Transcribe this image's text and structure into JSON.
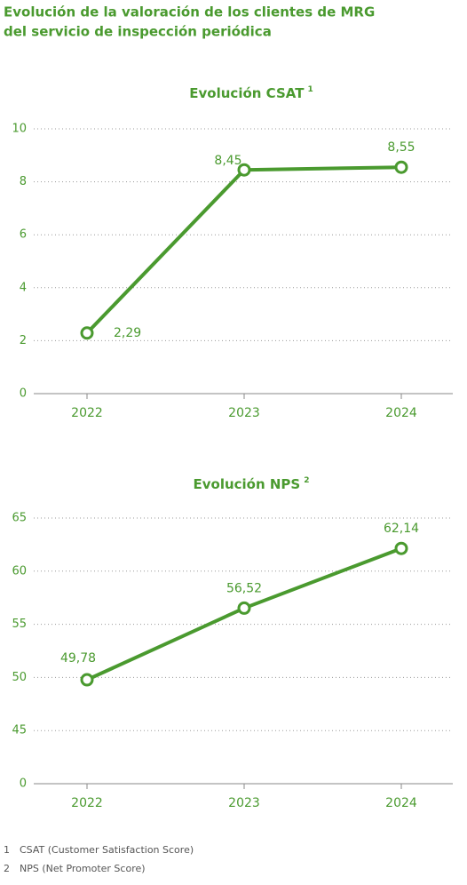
{
  "title": [
    "Evolución de la valoración de los clientes de MRG",
    "del servicio de inspección periódica"
  ],
  "chart_data": [
    {
      "type": "line",
      "title": "Evolución CSAT",
      "title_note": "1",
      "categories": [
        "2022",
        "2023",
        "2024"
      ],
      "values": [
        2.29,
        8.45,
        8.55
      ],
      "value_labels": [
        "2,29",
        "8,45",
        "8,55"
      ],
      "color": "#4a9a2f",
      "ylim": [
        0,
        10
      ],
      "yticks": [
        0,
        2,
        4,
        6,
        8,
        10
      ],
      "grid": true
    },
    {
      "type": "line",
      "title": "Evolución NPS",
      "title_note": "2",
      "categories": [
        "2022",
        "2023",
        "2024"
      ],
      "values": [
        49.78,
        56.52,
        62.14
      ],
      "value_labels": [
        "49,78",
        "56,52",
        "62,14"
      ],
      "color": "#4a9a2f",
      "ylim": [
        0,
        65
      ],
      "ybreak": [
        0,
        45
      ],
      "yticks": [
        0,
        45,
        50,
        55,
        60,
        65
      ],
      "grid": true
    }
  ],
  "footnotes": [
    {
      "marker": "1",
      "text": "CSAT (Customer Satisfaction Score)"
    },
    {
      "marker": "2",
      "text": "NPS (Net Promoter Score)"
    }
  ]
}
